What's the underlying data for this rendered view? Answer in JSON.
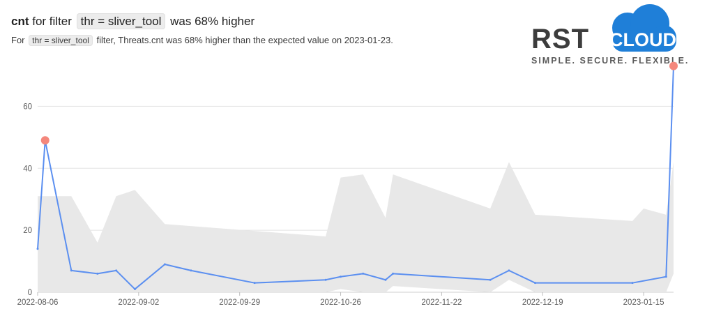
{
  "header": {
    "metric": "cnt",
    "pre": "for filter",
    "filter": "thr = sliver_tool",
    "post": "was 68% higher",
    "sub_pre": "For",
    "sub_filter": "thr = sliver_tool",
    "sub_post": "filter, Threats.cnt was 68% higher than the expected value on 2023-01-23."
  },
  "logo": {
    "brand_left": "RST",
    "brand_right": "CLOUD",
    "tagline": "SIMPLE. SECURE. FLEXIBLE."
  },
  "colors": {
    "line": "#5b8ff0",
    "band": "#e8e8e8",
    "anomaly": "#f4877c",
    "cloud": "#1f7fd8"
  },
  "chart_data": {
    "type": "line",
    "x_tick_labels": [
      "2022-08-06",
      "2022-09-02",
      "2022-09-29",
      "2022-10-26",
      "2022-11-22",
      "2022-12-19",
      "2023-01-15"
    ],
    "y_ticks": [
      0,
      20,
      40,
      60
    ],
    "ylim": [
      0,
      70
    ],
    "grid": true,
    "series": [
      {
        "x": [
          "2022-08-06",
          "2022-08-08",
          "2022-08-15",
          "2022-08-22",
          "2022-08-27",
          "2022-09-01",
          "2022-09-09",
          "2022-09-16",
          "2022-10-03",
          "2022-10-22",
          "2022-10-26",
          "2022-11-01",
          "2022-11-07",
          "2022-11-09",
          "2022-12-05",
          "2022-12-10",
          "2022-12-17",
          "2023-01-12",
          "2023-01-21",
          "2023-01-23"
        ],
        "values": [
          14,
          49,
          7,
          6,
          7,
          1,
          9,
          7,
          3,
          4,
          5,
          6,
          4,
          6,
          4,
          7,
          3,
          3,
          5,
          73
        ]
      }
    ],
    "expected_band": {
      "x": [
        "2022-08-06",
        "2022-08-15",
        "2022-08-22",
        "2022-08-27",
        "2022-09-01",
        "2022-09-09",
        "2022-10-22",
        "2022-10-26",
        "2022-11-01",
        "2022-11-07",
        "2022-11-09",
        "2022-12-05",
        "2022-12-10",
        "2022-12-17",
        "2023-01-12",
        "2023-01-15",
        "2023-01-21",
        "2023-01-23"
      ],
      "upper": [
        31,
        31,
        16,
        31,
        33,
        22,
        18,
        37,
        38,
        24,
        38,
        27,
        42,
        25,
        23,
        27,
        25,
        42
      ],
      "lower": [
        0,
        0,
        0,
        0,
        0,
        0,
        0,
        1,
        0,
        0,
        2,
        0,
        4,
        0,
        0,
        0,
        0,
        6
      ]
    },
    "anomalies": [
      {
        "x": "2022-08-08",
        "value": 49
      },
      {
        "x": "2023-01-23",
        "value": 73
      }
    ]
  }
}
